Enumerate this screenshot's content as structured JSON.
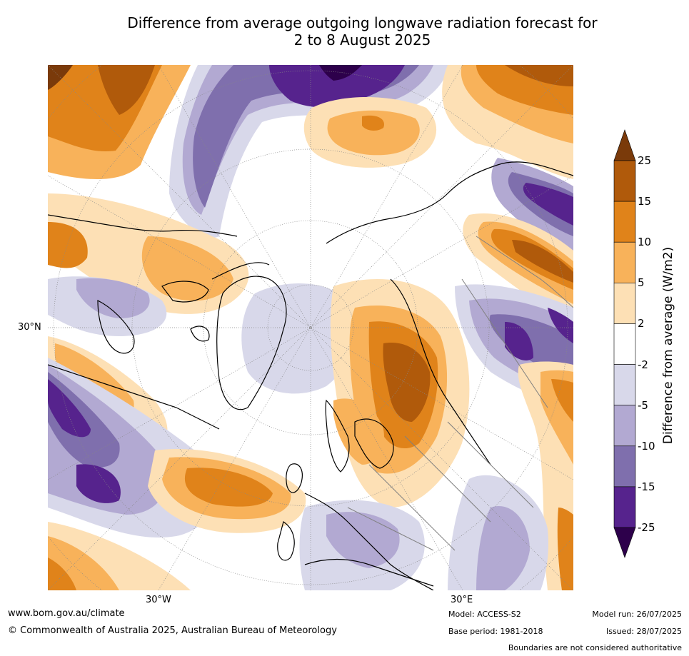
{
  "title_line1": "Difference from average outgoing longwave radiation forecast for",
  "title_line2": "2 to 8 August 2025",
  "colorbar": {
    "label": "Difference from average (W/m2)",
    "ticks": [
      "25",
      "15",
      "10",
      "5",
      "2",
      "-2",
      "-5",
      "-10",
      "-15",
      "-25"
    ],
    "colors": [
      "#7a3a0a",
      "#b05a0b",
      "#e0831a",
      "#f8b25a",
      "#fde0b5",
      "#ffffff",
      "#d8d8ea",
      "#b2a9d2",
      "#7f6fad",
      "#56238d",
      "#2d004b"
    ]
  },
  "map": {
    "lat_label": "30°N",
    "lon_labels": [
      "30°W",
      "30°E"
    ],
    "coast_color": "#000000",
    "border_color": "#808080"
  },
  "footer": {
    "website": "www.bom.gov.au/climate",
    "copyright": "© Commonwealth of Australia 2025, Australian Bureau of Meteorology",
    "model": "Model: ACCESS-S2",
    "base_period": "Base period: 1981-2018",
    "model_run": "Model run: 26/07/2025",
    "issued": "Issued: 28/07/2025",
    "disclaimer": "Boundaries are not considered authoritative"
  }
}
